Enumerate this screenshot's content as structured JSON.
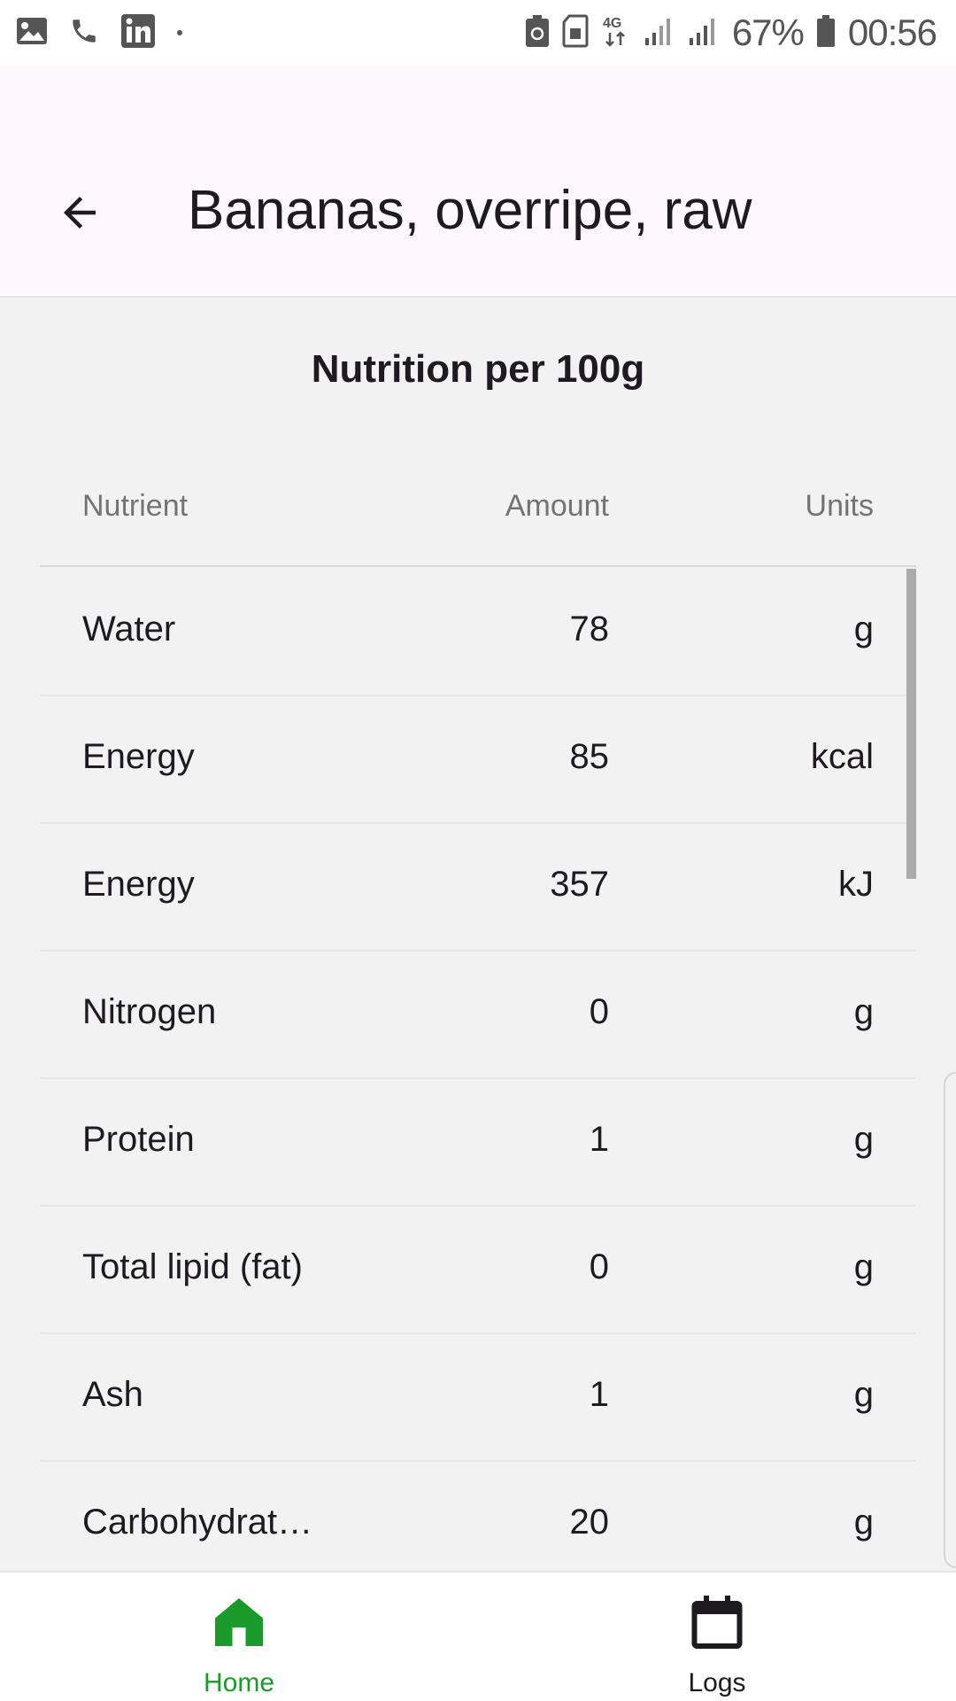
{
  "status_bar": {
    "left_icons": [
      "gallery-icon",
      "phone-icon",
      "linkedin-icon",
      "dot-icon"
    ],
    "battery_percent": "67%",
    "time": "00:56",
    "network": "4G"
  },
  "app_bar": {
    "title": "Bananas, overripe, raw",
    "back_icon": "arrow-back-icon"
  },
  "section": {
    "title": "Nutrition per 100g"
  },
  "table": {
    "headers": {
      "nutrient": "Nutrient",
      "amount": "Amount",
      "units": "Units"
    },
    "rows": [
      {
        "name": "Water",
        "amount": "78",
        "unit": "g"
      },
      {
        "name": "Energy",
        "amount": "85",
        "unit": "kcal"
      },
      {
        "name": "Energy",
        "amount": "357",
        "unit": "kJ"
      },
      {
        "name": "Nitrogen",
        "amount": "0",
        "unit": "g"
      },
      {
        "name": "Protein",
        "amount": "1",
        "unit": "g"
      },
      {
        "name": "Total lipid (fat)",
        "amount": "0",
        "unit": "g"
      },
      {
        "name": "Ash",
        "amount": "1",
        "unit": "g"
      },
      {
        "name": "Carbohydrat…",
        "amount": "20",
        "unit": "g"
      }
    ]
  },
  "bottom_nav": {
    "items": [
      {
        "label": "Home",
        "icon": "home-icon",
        "active": true
      },
      {
        "label": "Logs",
        "icon": "calendar-icon",
        "active": false
      }
    ]
  },
  "colors": {
    "accent_green": "#1a9a2a",
    "app_bar_bg": "#fef7fb",
    "content_bg": "#f2f2f2"
  }
}
